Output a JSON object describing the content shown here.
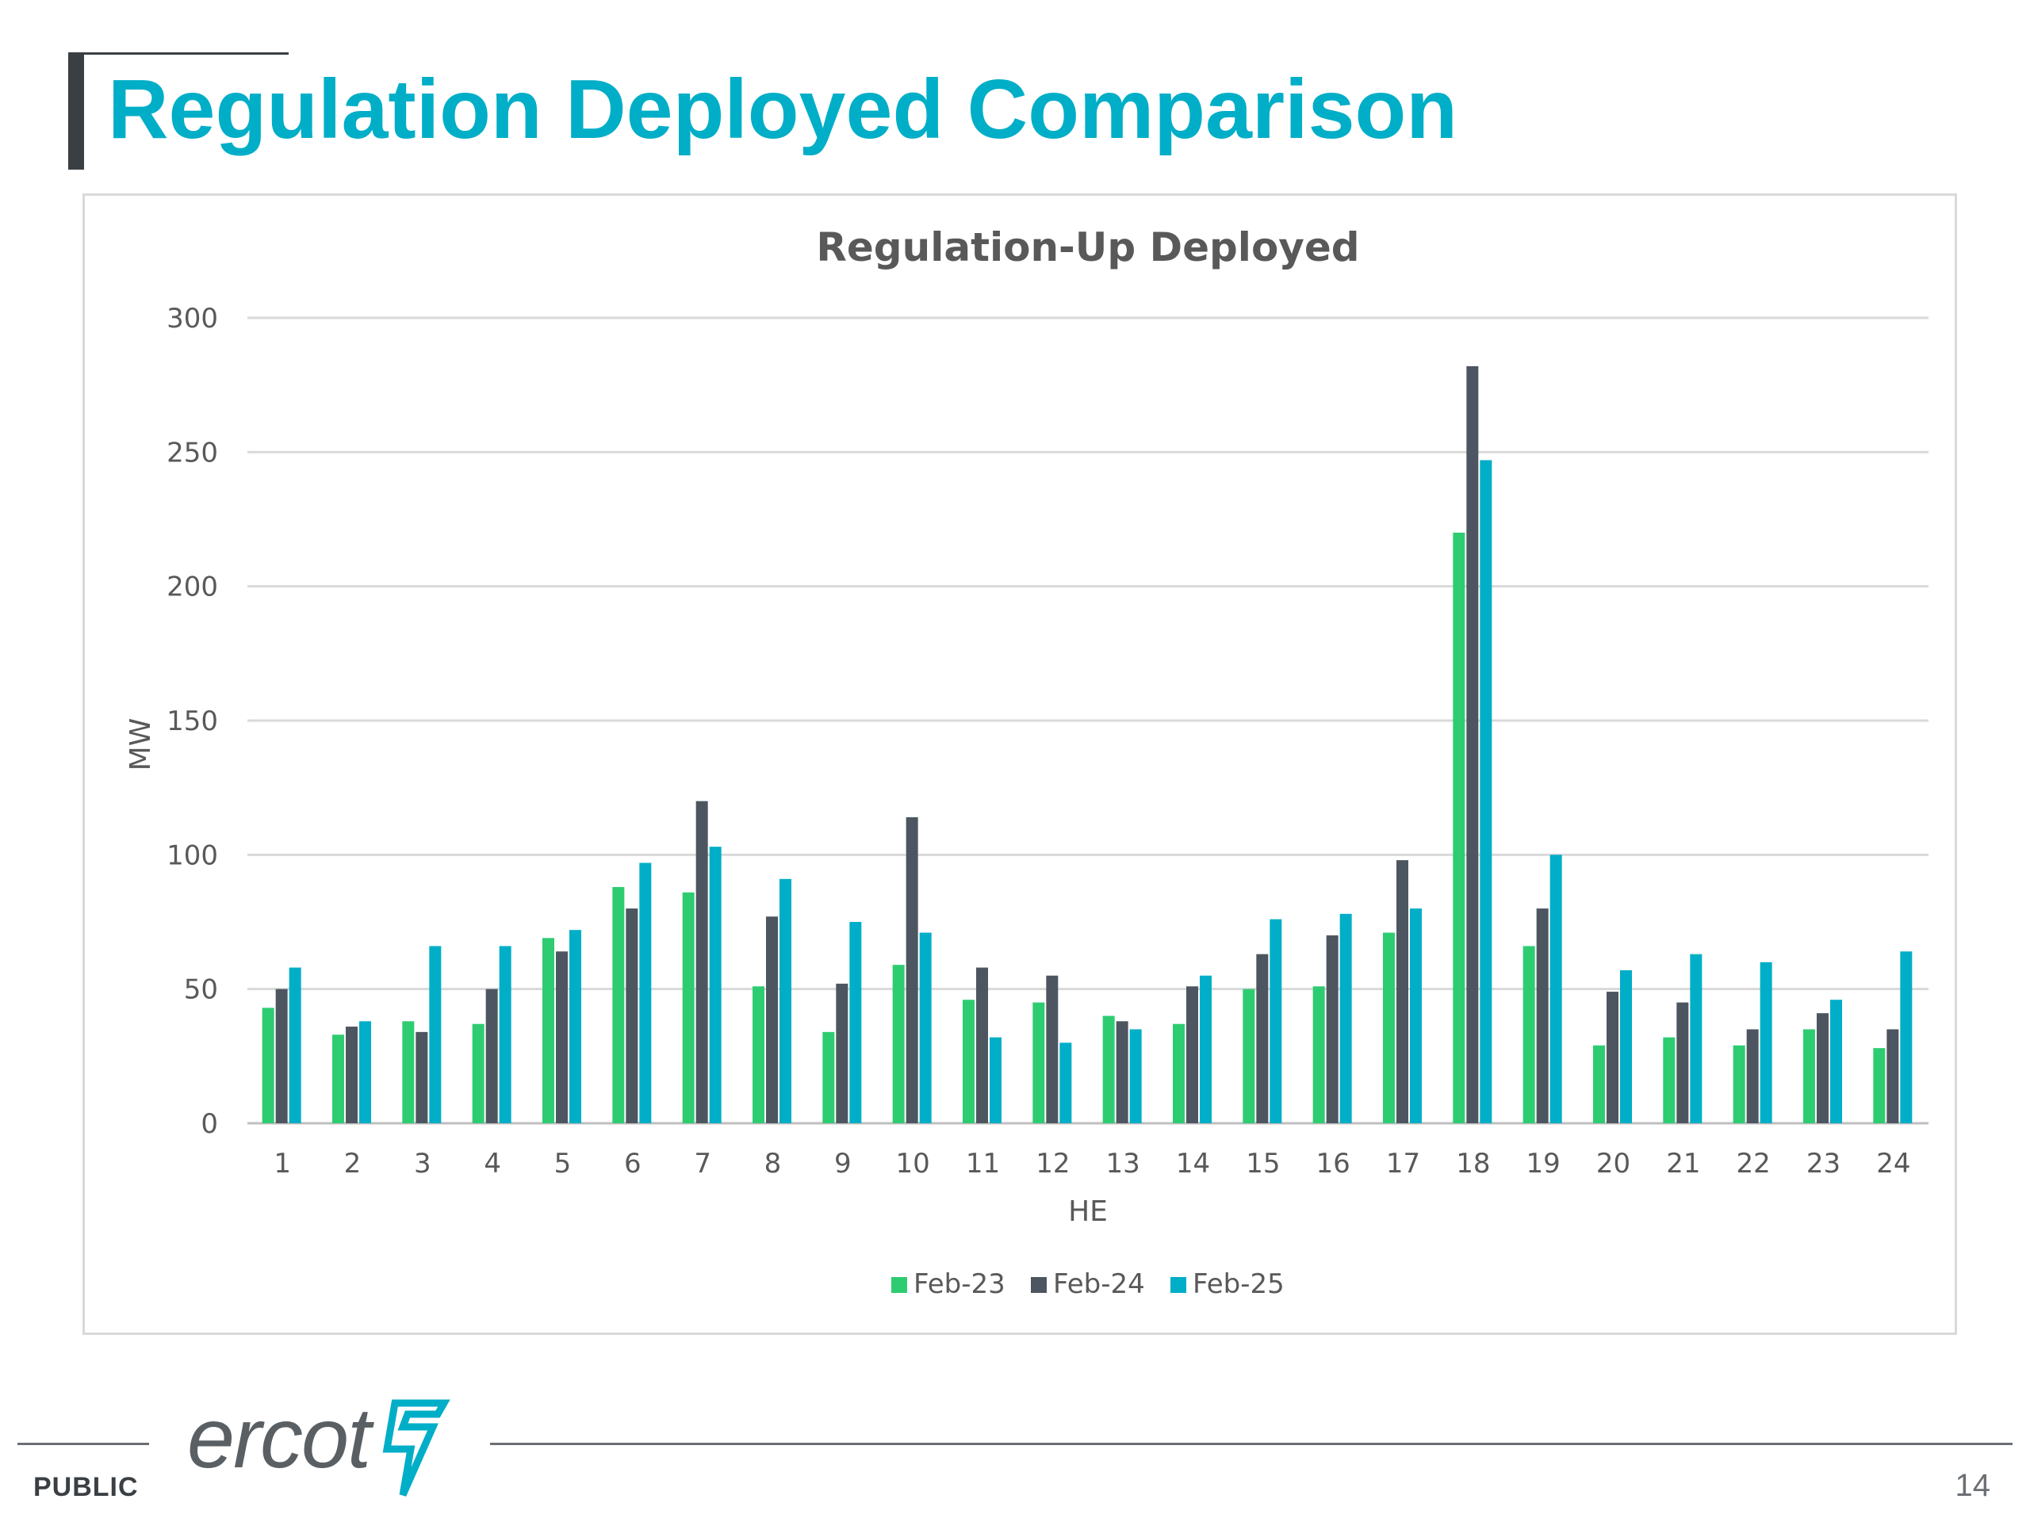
{
  "slide": {
    "title": "Regulation Deployed Comparison",
    "footer_label": "PUBLIC",
    "page_number": "14",
    "logo_text": "ercot"
  },
  "colors": {
    "title": "#00aec7",
    "series": [
      "#2ecc71",
      "#4d5660",
      "#00aec7"
    ],
    "grid": "#d9d9d9",
    "axis_text": "#595959"
  },
  "chart_data": {
    "type": "bar",
    "title": "Regulation-Up Deployed",
    "xlabel": "HE",
    "ylabel": "MW",
    "ylim": [
      0,
      300
    ],
    "yticks": [
      0,
      50,
      100,
      150,
      200,
      250,
      300
    ],
    "grid": true,
    "legend_position": "bottom",
    "categories": [
      "1",
      "2",
      "3",
      "4",
      "5",
      "6",
      "7",
      "8",
      "9",
      "10",
      "11",
      "12",
      "13",
      "14",
      "15",
      "16",
      "17",
      "18",
      "19",
      "20",
      "21",
      "22",
      "23",
      "24"
    ],
    "series": [
      {
        "name": "Feb-23",
        "values": [
          43,
          33,
          38,
          37,
          69,
          88,
          86,
          51,
          34,
          59,
          46,
          45,
          40,
          37,
          50,
          51,
          71,
          220,
          66,
          29,
          32,
          29,
          35,
          28
        ]
      },
      {
        "name": "Feb-24",
        "values": [
          50,
          36,
          34,
          50,
          64,
          80,
          120,
          77,
          52,
          114,
          58,
          55,
          38,
          51,
          63,
          70,
          98,
          282,
          80,
          49,
          45,
          35,
          41,
          35
        ]
      },
      {
        "name": "Feb-25",
        "values": [
          58,
          38,
          66,
          66,
          72,
          97,
          103,
          91,
          75,
          71,
          32,
          30,
          35,
          55,
          76,
          78,
          80,
          247,
          100,
          57,
          63,
          60,
          46,
          64
        ]
      }
    ]
  }
}
